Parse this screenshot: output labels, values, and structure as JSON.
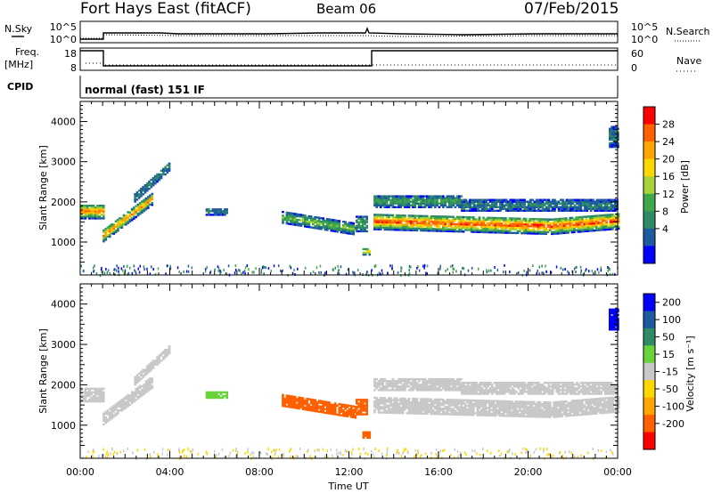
{
  "header": {
    "title": "Fort Hays East (fitACF)",
    "beam": "Beam 06",
    "date": "07/Feb/2015"
  },
  "top_panel": {
    "left_label": "N.Sky",
    "right_label": "N.Search",
    "left_ticks": [
      "10^5",
      "10^0"
    ],
    "right_ticks": [
      "10^5",
      "10^0"
    ],
    "freq_label_1": "Freq.",
    "freq_label_2": "[MHz]",
    "freq_ticks": [
      "18",
      "8"
    ],
    "nave_label": "Nave",
    "nave_ticks": [
      "60",
      "0"
    ],
    "cpid_label": "CPID",
    "cpid_text": "normal (fast) 151 IF"
  },
  "colors": {
    "power": [
      "#0000ff",
      "#1e5aa0",
      "#2f8a66",
      "#3fa84a",
      "#a8d23a",
      "#ffd700",
      "#ffa500",
      "#ff6000",
      "#ff0000"
    ],
    "velocity": [
      "#ff0000",
      "#ff6000",
      "#ffa500",
      "#ffd700",
      "#c8c8c8",
      "#6ad23a",
      "#2f8a66",
      "#1e5aa0",
      "#0000ff"
    ]
  },
  "chart_data": [
    {
      "type": "heatmap",
      "name": "power",
      "ylabel": "Slant Range [km]",
      "y_ticks": [
        1000,
        2000,
        3000,
        4000
      ],
      "ylim": [
        180,
        4500
      ],
      "colorbar_label": "Power [dB]",
      "colorbar_ticks": [
        "28",
        "24",
        "20",
        "16",
        "12",
        "8",
        "4"
      ],
      "x_ticks": [
        "00:00",
        "04:00",
        "08:00",
        "12:00",
        "16:00",
        "20:00",
        "00:00"
      ],
      "xlim_hours": [
        0,
        24
      ]
    },
    {
      "type": "heatmap",
      "name": "velocity",
      "ylabel": "Slant Range [km]",
      "y_ticks": [
        1000,
        2000,
        3000,
        4000
      ],
      "ylim": [
        180,
        4500
      ],
      "colorbar_label": "Velocity [m s⁻¹]",
      "colorbar_ticks": [
        "200",
        "100",
        "50",
        "15",
        "-15",
        "-50",
        "-100",
        "-200"
      ],
      "x_ticks": [
        "00:00",
        "04:00",
        "08:00",
        "12:00",
        "16:00",
        "20:00",
        "00:00"
      ],
      "xlabel": "Time UT",
      "xlim_hours": [
        0,
        24
      ]
    }
  ]
}
